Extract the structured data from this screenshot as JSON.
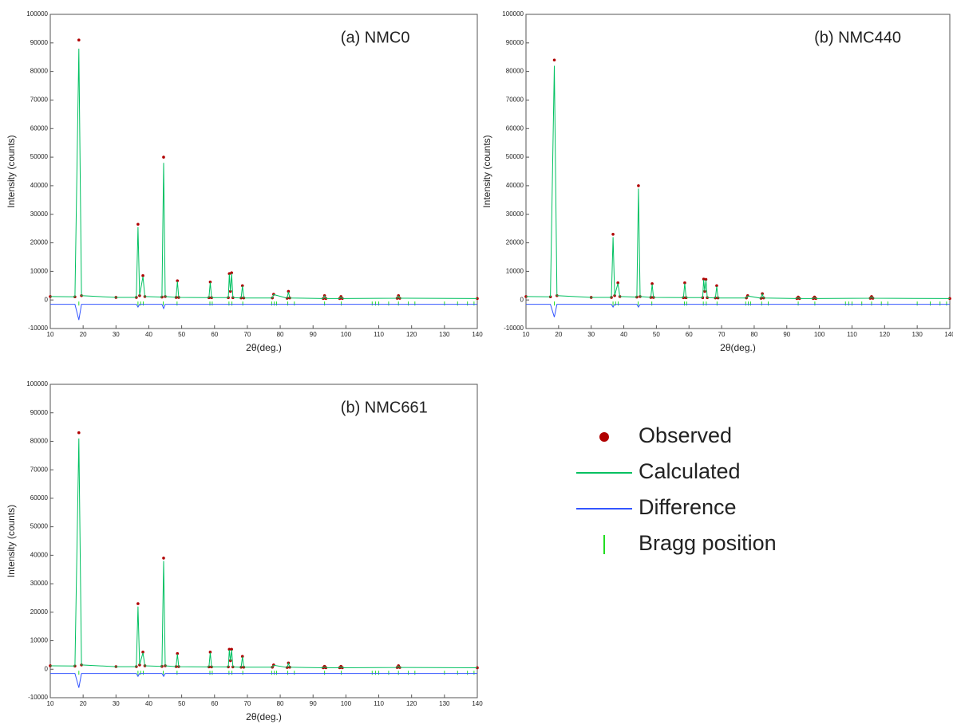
{
  "chart_data": [
    {
      "type": "line",
      "title": "(a) NMC0",
      "x_label": "2θ(deg.)",
      "y_label": "Intensity (counts)",
      "x": [
        10,
        17.5,
        18.7,
        19.5,
        30,
        36.2,
        36.7,
        37.2,
        38.2,
        38.8,
        44,
        44.5,
        45,
        48.3,
        48.7,
        49.1,
        58.3,
        58.7,
        59.1,
        64.2,
        64.5,
        64.85,
        65.2,
        65.6,
        68.1,
        68.5,
        68.9,
        77.6,
        78,
        82.1,
        82.5,
        82.9,
        93.1,
        93.5,
        93.9,
        98.1,
        98.5,
        98.9,
        115.6,
        116,
        116.4,
        140
      ],
      "series": [
        {
          "name": "Observed",
          "color": "#b00000",
          "values": [
            1200,
            1100,
            91000,
            1500,
            900,
            900,
            26500,
            1500,
            8500,
            1200,
            1000,
            50000,
            1200,
            900,
            6700,
            900,
            800,
            6300,
            800,
            800,
            9200,
            3000,
            9500,
            800,
            700,
            5000,
            700,
            700,
            2000,
            600,
            3000,
            700,
            500,
            1500,
            500,
            500,
            1200,
            500,
            600,
            1500,
            600,
            500
          ]
        },
        {
          "name": "Calculated",
          "color": "#00c060",
          "values": [
            1200,
            1100,
            88000,
            1500,
            900,
            900,
            25500,
            1500,
            8200,
            1200,
            1000,
            48000,
            1200,
            900,
            6500,
            900,
            800,
            6100,
            800,
            800,
            9000,
            3000,
            9300,
            800,
            700,
            4900,
            700,
            700,
            1900,
            600,
            2900,
            700,
            500,
            1400,
            500,
            500,
            1100,
            500,
            600,
            1400,
            600,
            500
          ]
        },
        {
          "name": "Difference",
          "color": "#3355ff",
          "values": [
            -1500,
            -1500,
            -7000,
            -1500,
            -1500,
            -1500,
            -2500,
            -1500,
            -1500,
            -1500,
            -1500,
            -3000,
            -1500,
            -1500,
            -1500,
            -1500,
            -1500,
            -1500,
            -1500,
            -1500,
            -1500,
            -1500,
            -1500,
            -1500,
            -1500,
            -1500,
            -1500,
            -1500,
            -1500,
            -1500,
            -1500,
            -1500,
            -1500,
            -1500,
            -1500,
            -1500,
            -1500,
            -1500,
            -1500,
            -1500,
            -1500,
            -1500
          ]
        },
        {
          "name": "Bragg position",
          "color": "#22dd22",
          "x": [
            18.7,
            36.7,
            37.5,
            38.3,
            44.4,
            48.6,
            58.6,
            59.3,
            64.4,
            65.3,
            68.6,
            77.4,
            78.2,
            78.9,
            82.3,
            84.3,
            93.5,
            98.6,
            108,
            109,
            110,
            113,
            116,
            119,
            121,
            130,
            134,
            137,
            139
          ]
        }
      ],
      "xlim": [
        10,
        140
      ],
      "xticks": [
        10,
        20,
        30,
        40,
        50,
        60,
        70,
        80,
        90,
        100,
        110,
        120,
        130,
        140
      ],
      "ylim": [
        -10000,
        100000
      ],
      "yticks": [
        -10000,
        0,
        10000,
        20000,
        30000,
        40000,
        50000,
        60000,
        70000,
        80000,
        90000,
        100000
      ]
    },
    {
      "type": "line",
      "title": "(b) NMC440",
      "x_label": "2θ(deg.)",
      "y_label": "Intensity (counts)",
      "x": [
        10,
        17.5,
        18.7,
        19.5,
        30,
        36.2,
        36.7,
        37.2,
        38.2,
        38.8,
        44,
        44.5,
        45,
        48.3,
        48.7,
        49.1,
        58.3,
        58.7,
        59.1,
        64.2,
        64.5,
        64.85,
        65.2,
        65.6,
        68.1,
        68.5,
        68.9,
        77.6,
        78,
        82.1,
        82.5,
        82.9,
        93.1,
        93.5,
        93.9,
        98.1,
        98.5,
        98.9,
        115.6,
        116,
        116.4,
        140
      ],
      "series": [
        {
          "name": "Observed",
          "color": "#b00000",
          "values": [
            1200,
            1100,
            84000,
            1500,
            900,
            900,
            23000,
            1500,
            6000,
            1200,
            1000,
            40000,
            1200,
            900,
            5700,
            900,
            800,
            6000,
            800,
            800,
            7300,
            3000,
            7200,
            800,
            700,
            5000,
            700,
            700,
            1500,
            600,
            2200,
            700,
            500,
            1000,
            500,
            500,
            1000,
            500,
            600,
            1200,
            600,
            500
          ]
        },
        {
          "name": "Calculated",
          "color": "#00c060",
          "values": [
            1200,
            1100,
            82000,
            1500,
            900,
            900,
            22000,
            1500,
            5800,
            1200,
            1000,
            39000,
            1200,
            900,
            5500,
            900,
            800,
            5800,
            800,
            800,
            7100,
            3000,
            7000,
            800,
            700,
            4800,
            700,
            700,
            1400,
            600,
            2100,
            700,
            500,
            900,
            500,
            500,
            900,
            500,
            600,
            1100,
            600,
            500
          ]
        },
        {
          "name": "Difference",
          "color": "#3355ff",
          "values": [
            -1500,
            -1500,
            -6000,
            -1500,
            -1500,
            -1500,
            -2500,
            -1500,
            -1500,
            -1500,
            -1500,
            -2500,
            -1500,
            -1500,
            -1500,
            -1500,
            -1500,
            -1500,
            -1500,
            -1500,
            -1500,
            -1500,
            -1500,
            -1500,
            -1500,
            -1500,
            -1500,
            -1500,
            -1500,
            -1500,
            -1500,
            -1500,
            -1500,
            -1500,
            -1500,
            -1500,
            -1500,
            -1500,
            -1500,
            -1500,
            -1500,
            -1500
          ]
        },
        {
          "name": "Bragg position",
          "color": "#22dd22",
          "x": [
            18.7,
            36.7,
            37.5,
            38.3,
            44.4,
            48.6,
            58.6,
            59.3,
            64.4,
            65.3,
            68.6,
            77.4,
            78.2,
            78.9,
            82.3,
            84.3,
            93.5,
            98.6,
            108,
            109,
            110,
            113,
            116,
            119,
            121,
            130,
            134,
            137,
            139
          ]
        }
      ],
      "xlim": [
        10,
        140
      ],
      "xticks": [
        10,
        20,
        30,
        40,
        50,
        60,
        70,
        80,
        90,
        100,
        110,
        120,
        130,
        140
      ],
      "ylim": [
        -10000,
        100000
      ],
      "yticks": [
        -10000,
        0,
        10000,
        20000,
        30000,
        40000,
        50000,
        60000,
        70000,
        80000,
        90000,
        100000
      ]
    },
    {
      "type": "line",
      "title": "(b) NMC661",
      "x_label": "2θ(deg.)",
      "y_label": "Intensity (counts)",
      "x": [
        10,
        17.5,
        18.7,
        19.5,
        30,
        36.2,
        36.7,
        37.2,
        38.2,
        38.8,
        44,
        44.5,
        45,
        48.3,
        48.7,
        49.1,
        58.3,
        58.7,
        59.1,
        64.2,
        64.5,
        64.85,
        65.2,
        65.6,
        68.1,
        68.5,
        68.9,
        77.6,
        78,
        82.1,
        82.5,
        82.9,
        93.1,
        93.5,
        93.9,
        98.1,
        98.5,
        98.9,
        115.6,
        116,
        116.4,
        140
      ],
      "series": [
        {
          "name": "Observed",
          "color": "#b00000",
          "values": [
            1200,
            1100,
            83000,
            1500,
            900,
            900,
            23000,
            1500,
            6000,
            1200,
            1000,
            39000,
            1200,
            900,
            5500,
            900,
            800,
            6000,
            800,
            800,
            7000,
            3000,
            7000,
            800,
            700,
            4500,
            700,
            700,
            1500,
            600,
            2200,
            700,
            500,
            1000,
            500,
            500,
            1000,
            500,
            600,
            1200,
            600,
            500
          ]
        },
        {
          "name": "Calculated",
          "color": "#00c060",
          "values": [
            1200,
            1100,
            81000,
            1500,
            900,
            900,
            22000,
            1500,
            5800,
            1200,
            1000,
            38000,
            1200,
            900,
            5300,
            900,
            800,
            5800,
            800,
            800,
            6800,
            3000,
            6800,
            800,
            700,
            4400,
            700,
            700,
            1400,
            600,
            2100,
            700,
            500,
            900,
            500,
            500,
            900,
            500,
            600,
            1100,
            600,
            500
          ]
        },
        {
          "name": "Difference",
          "color": "#3355ff",
          "values": [
            -1500,
            -1500,
            -6500,
            -1500,
            -1500,
            -1500,
            -2500,
            -1500,
            -1500,
            -1500,
            -1500,
            -2500,
            -1500,
            -1500,
            -1500,
            -1500,
            -1500,
            -1500,
            -1500,
            -1500,
            -1500,
            -1500,
            -1500,
            -1500,
            -1500,
            -1500,
            -1500,
            -1500,
            -1500,
            -1500,
            -1500,
            -1500,
            -1500,
            -1500,
            -1500,
            -1500,
            -1500,
            -1500,
            -1500,
            -1500,
            -1500,
            -1500
          ]
        },
        {
          "name": "Bragg position",
          "color": "#22dd22",
          "x": [
            18.7,
            36.7,
            37.5,
            38.3,
            44.4,
            48.6,
            58.6,
            59.3,
            64.4,
            65.3,
            68.6,
            77.4,
            78.2,
            78.9,
            82.3,
            84.3,
            93.5,
            98.6,
            108,
            109,
            110,
            113,
            116,
            119,
            121,
            130,
            134,
            137,
            139
          ]
        }
      ],
      "xlim": [
        10,
        140
      ],
      "xticks": [
        10,
        20,
        30,
        40,
        50,
        60,
        70,
        80,
        90,
        100,
        110,
        120,
        130,
        140
      ],
      "ylim": [
        -10000,
        100000
      ],
      "yticks": [
        -10000,
        0,
        10000,
        20000,
        30000,
        40000,
        50000,
        60000,
        70000,
        80000,
        90000,
        100000
      ]
    }
  ]
}
